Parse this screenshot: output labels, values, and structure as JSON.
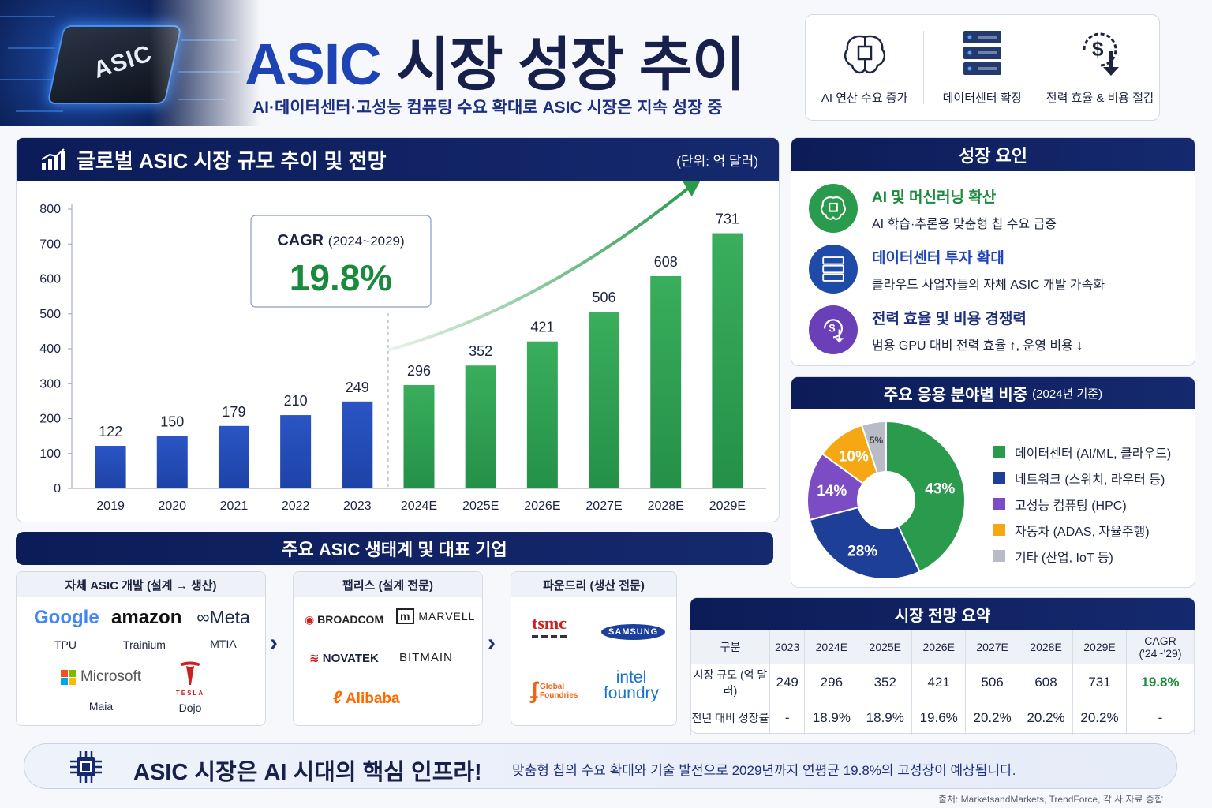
{
  "header": {
    "hero_chip_label": "ASIC",
    "title_accent": "ASIC",
    "title_rest": " 시장 성장 추이",
    "subtitle": "AI·데이터센터·고성능 컴퓨팅 수요 확대로 ASIC 시장은 지속 성장 중",
    "drivers": [
      {
        "label": "AI 연산 수요 증가",
        "icon": "ai-brain-icon"
      },
      {
        "label": "데이터센터 확장",
        "icon": "server-icon"
      },
      {
        "label": "전력 효율 & 비용 절감",
        "icon": "dollar-down-icon"
      }
    ]
  },
  "chart_panel": {
    "title": "글로벌 ASIC 시장 규모 추이 및 전망",
    "unit": "(단위: 억 달러)",
    "cagr_label": "CAGR",
    "cagr_period": "(2024~2029)",
    "cagr_value": "19.8%"
  },
  "chart_data": [
    {
      "type": "bar",
      "title": "글로벌 ASIC 시장 규모 추이 및 전망",
      "categories": [
        "2019",
        "2020",
        "2021",
        "2022",
        "2023",
        "2024E",
        "2025E",
        "2026E",
        "2027E",
        "2028E",
        "2029E"
      ],
      "values": [
        122,
        150,
        179,
        210,
        249,
        296,
        352,
        421,
        506,
        608,
        731
      ],
      "actual_color": "#1e43a8",
      "forecast_color": "#249048",
      "forecast_start_index": 5,
      "ylim": [
        0,
        800
      ],
      "yticks": [
        0,
        100,
        200,
        300,
        400,
        500,
        600,
        700,
        800
      ],
      "ylabel": "",
      "xlabel": "",
      "grid": false
    },
    {
      "type": "pie",
      "title": "주요 응용 분야별 비중",
      "subtitle": "(2024년 기준)",
      "slices": [
        {
          "label": "데이터센터 (AI/ML, 클라우드)",
          "value": 43,
          "color": "#2a9a4c"
        },
        {
          "label": "네트워크 (스위치, 라우터 등)",
          "value": 28,
          "color": "#1e3f98"
        },
        {
          "label": "고성능 컴퓨팅 (HPC)",
          "value": 14,
          "color": "#7c4cc4"
        },
        {
          "label": "자동차 (ADAS, 자율주행)",
          "value": 10,
          "color": "#f5a813"
        },
        {
          "label": "기타 (산업, IoT 등)",
          "value": 5,
          "color": "#b8bcc6"
        }
      ],
      "legend_position": "right",
      "donut": true
    }
  ],
  "factors": {
    "title": "성장 요인",
    "items": [
      {
        "title": "AI 및 머신러닝 확산",
        "desc": "AI 학습·추론용 맞춤형 칩 수요 급증",
        "color": "#2a9a4c",
        "title_color": "#1a8a3c",
        "icon": "ai-brain-icon"
      },
      {
        "title": "데이터센터 투자 확대",
        "desc": "클라우드 사업자들의 자체 ASIC 개발 가속화",
        "color": "#1e4aa8",
        "title_color": "#1d43b4",
        "icon": "server-icon"
      },
      {
        "title": "전력 효율 및 비용 경쟁력",
        "desc": "범용 GPU 대비 전력 효율 ↑, 운영 비용 ↓",
        "color": "#6a3fb8",
        "title_color": "#1c2f80",
        "icon": "dollar-down-icon"
      }
    ]
  },
  "pie_panel": {
    "title": "주요 응용 분야별 비중",
    "subtitle": "(2024년 기준)",
    "slice_labels": [
      "43%",
      "28%",
      "14%",
      "10%",
      "5%"
    ]
  },
  "ecosystem": {
    "title": "주요 ASIC 생태계 및 대표 기업",
    "groups": [
      {
        "title": "자체 ASIC 개발 (설계 → 생산)",
        "companies": [
          {
            "logo": "Google",
            "caption": "TPU"
          },
          {
            "logo": "amazon",
            "caption": "Trainium"
          },
          {
            "logo": "∞Meta",
            "caption": "MTIA"
          },
          {
            "logo": "Microsoft",
            "caption": "Maia"
          },
          {
            "logo": "TESLA",
            "caption": "Dojo"
          }
        ]
      },
      {
        "title": "팹리스 (설계 전문)",
        "companies": [
          {
            "logo": "BROADCOM"
          },
          {
            "logo": "MARVELL"
          },
          {
            "logo": "NOVATEK"
          },
          {
            "logo": "BITMAIN"
          },
          {
            "logo": "Alibaba"
          }
        ]
      },
      {
        "title": "파운드리 (생산 전문)",
        "companies": [
          {
            "logo": "tsmc"
          },
          {
            "logo": "SAMSUNG"
          },
          {
            "logo": "Global Foundries"
          },
          {
            "logo": "intel foundry"
          }
        ]
      }
    ]
  },
  "summary": {
    "title": "시장 전망 요약",
    "headers": [
      "구분",
      "2023",
      "2024E",
      "2025E",
      "2026E",
      "2027E",
      "2028E",
      "2029E",
      "CAGR ('24~'29)"
    ],
    "rows": [
      [
        "시장 규모 (억 달러)",
        "249",
        "296",
        "352",
        "421",
        "506",
        "608",
        "731",
        "19.8%"
      ],
      [
        "전년 대비 성장률",
        "-",
        "18.9%",
        "18.9%",
        "19.6%",
        "20.2%",
        "20.2%",
        "20.2%",
        "-"
      ]
    ]
  },
  "banner": {
    "title": "ASIC 시장은 AI 시대의 핵심 인프라!",
    "desc": "맞춤형 칩의 수요 확대와 기술 발전으로 2029년까지 연평균 19.8%의 고성장이 예상됩니다."
  },
  "source": "출처: MarketsandMarkets, TrendForce, 각 사 자료 종합"
}
